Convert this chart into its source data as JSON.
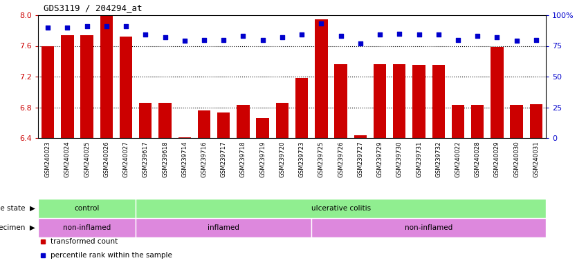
{
  "title": "GDS3119 / 204294_at",
  "samples": [
    "GSM240023",
    "GSM240024",
    "GSM240025",
    "GSM240026",
    "GSM240027",
    "GSM239617",
    "GSM239618",
    "GSM239714",
    "GSM239716",
    "GSM239717",
    "GSM239718",
    "GSM239719",
    "GSM239720",
    "GSM239723",
    "GSM239725",
    "GSM239726",
    "GSM239727",
    "GSM239729",
    "GSM239730",
    "GSM239731",
    "GSM239732",
    "GSM240022",
    "GSM240028",
    "GSM240029",
    "GSM240030",
    "GSM240031"
  ],
  "transformed_count": [
    7.6,
    7.74,
    7.74,
    8.0,
    7.72,
    6.86,
    6.86,
    6.41,
    6.76,
    6.73,
    6.83,
    6.66,
    6.86,
    7.18,
    7.95,
    7.36,
    6.44,
    7.36,
    7.36,
    7.35,
    7.35,
    6.83,
    6.83,
    7.59,
    6.83,
    6.84
  ],
  "percentile_rank": [
    90,
    90,
    91,
    91,
    91,
    84,
    82,
    79,
    80,
    80,
    83,
    80,
    82,
    84,
    93,
    83,
    77,
    84,
    85,
    84,
    84,
    80,
    83,
    82,
    79,
    80
  ],
  "ylim_left": [
    6.4,
    8.0
  ],
  "ylim_right": [
    0,
    100
  ],
  "yticks_left": [
    6.4,
    6.8,
    7.2,
    7.6,
    8.0
  ],
  "yticks_right": [
    0,
    25,
    50,
    75,
    100
  ],
  "bar_color": "#cc0000",
  "dot_color": "#0000cc",
  "bg_color": "#ffffff",
  "xtick_bg": "#d8d8d8",
  "disease_state_groups": [
    {
      "label": "control",
      "start": 0,
      "end": 5
    },
    {
      "label": "ulcerative colitis",
      "start": 5,
      "end": 26
    }
  ],
  "disease_state_color": "#90ee90",
  "specimen_groups": [
    {
      "label": "non-inflamed",
      "start": 0,
      "end": 5
    },
    {
      "label": "inflamed",
      "start": 5,
      "end": 14
    },
    {
      "label": "non-inflamed",
      "start": 14,
      "end": 26
    }
  ],
  "specimen_color": "#dd88dd",
  "legend_labels": [
    "transformed count",
    "percentile rank within the sample"
  ],
  "legend_colors": [
    "#cc0000",
    "#0000cc"
  ]
}
